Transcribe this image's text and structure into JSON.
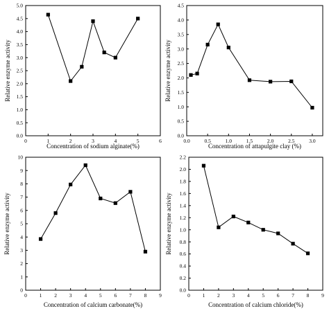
{
  "chart_data": [
    {
      "type": "line",
      "xlabel": "Concentration of  sodium alginate(%)",
      "ylabel": "Relative enzyme activity",
      "xlim": [
        0,
        6
      ],
      "ylim": [
        0.0,
        5.0
      ],
      "xticks": [
        0,
        1,
        2,
        3,
        4,
        5,
        6
      ],
      "yticks": [
        0.0,
        0.5,
        1.0,
        1.5,
        2.0,
        2.5,
        3.0,
        3.5,
        4.0,
        4.5,
        5.0
      ],
      "xtick_labels": [
        "0",
        "1",
        "2",
        "3",
        "4",
        "5",
        "6"
      ],
      "ytick_labels": [
        "0.0",
        "0.5",
        "1.0",
        "1.5",
        "2.0",
        "2.5",
        "3.0",
        "3.5",
        "4.0",
        "4.5",
        "5.0"
      ],
      "x": [
        1.0,
        2.0,
        2.5,
        3.0,
        3.5,
        4.0,
        5.0
      ],
      "y": [
        4.65,
        2.1,
        2.65,
        4.4,
        3.2,
        3.0,
        4.5
      ]
    },
    {
      "type": "line",
      "xlabel": "Concentration of attapulgite clay (%)",
      "ylabel": "Relative enzyme activity",
      "xlim": [
        0.0,
        3.25
      ],
      "ylim": [
        0.0,
        4.5
      ],
      "xticks": [
        0.0,
        0.5,
        1.0,
        1.5,
        2.0,
        2.5,
        3.0
      ],
      "yticks": [
        0.0,
        0.5,
        1.0,
        1.5,
        2.0,
        2.5,
        3.0,
        3.5,
        4.0,
        4.5
      ],
      "xtick_labels": [
        "0.0",
        "0.5",
        "1.0",
        "1.5",
        "2.0",
        "2.5",
        "3.0"
      ],
      "ytick_labels": [
        "0.0",
        "0.5",
        "1.0",
        "1.5",
        "2.0",
        "2.5",
        "3.0",
        "3.5",
        "4.0",
        "4.5"
      ],
      "x": [
        0.1,
        0.25,
        0.5,
        0.75,
        1.0,
        1.5,
        2.0,
        2.5,
        3.0
      ],
      "y": [
        2.1,
        2.15,
        3.15,
        3.85,
        3.05,
        1.92,
        1.87,
        1.88,
        0.97
      ]
    },
    {
      "type": "line",
      "xlabel": "Concentration of calcium carbonate(%)",
      "ylabel": "Relative enzyme activity",
      "xlim": [
        0,
        9
      ],
      "ylim": [
        0,
        10
      ],
      "xticks": [
        0,
        1,
        2,
        3,
        4,
        5,
        6,
        7,
        8,
        9
      ],
      "yticks": [
        0,
        1,
        2,
        3,
        4,
        5,
        6,
        7,
        8,
        9,
        10
      ],
      "xtick_labels": [
        "0",
        "1",
        "2",
        "3",
        "4",
        "5",
        "6",
        "7",
        "8",
        "9"
      ],
      "ytick_labels": [
        "0",
        "1",
        "2",
        "3",
        "4",
        "5",
        "6",
        "7",
        "8",
        "9",
        "10"
      ],
      "x": [
        1,
        2,
        3,
        4,
        5,
        6,
        7,
        8
      ],
      "y": [
        3.85,
        5.8,
        7.95,
        9.4,
        6.9,
        6.55,
        7.4,
        2.9
      ]
    },
    {
      "type": "line",
      "xlabel": "Concentration of calcium chloride(%)",
      "ylabel": "Relative enzyme activity",
      "xlim": [
        0,
        9
      ],
      "ylim": [
        0.0,
        2.2
      ],
      "xticks": [
        0,
        1,
        2,
        3,
        4,
        5,
        6,
        7,
        8,
        9
      ],
      "yticks": [
        0.0,
        0.2,
        0.4,
        0.6,
        0.8,
        1.0,
        1.2,
        1.4,
        1.6,
        1.8,
        2.0,
        2.2
      ],
      "xtick_labels": [
        "0",
        "1",
        "2",
        "3",
        "4",
        "5",
        "6",
        "7",
        "8",
        "9"
      ],
      "ytick_labels": [
        "0.0",
        "0.2",
        "0.4",
        "0.6",
        "0.8",
        "1.0",
        "1.2",
        "1.4",
        "1.6",
        "1.8",
        "2.0",
        "2.2"
      ],
      "x": [
        1,
        2,
        3,
        4,
        5,
        6,
        7,
        8
      ],
      "y": [
        2.06,
        1.04,
        1.22,
        1.12,
        1.0,
        0.94,
        0.77,
        0.61
      ]
    }
  ]
}
